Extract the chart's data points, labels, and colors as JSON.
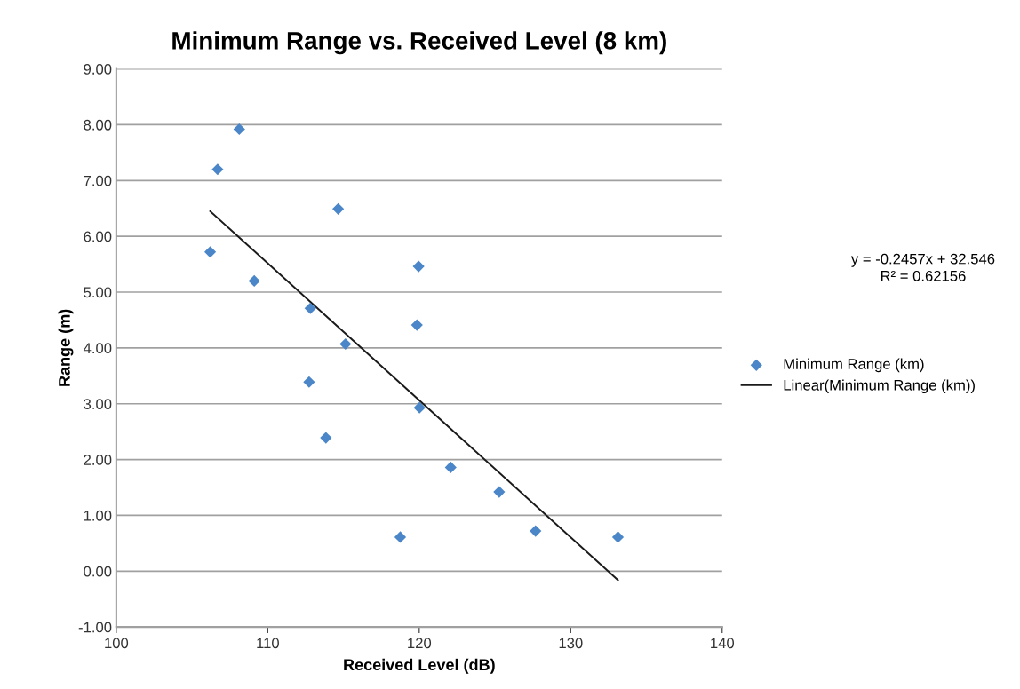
{
  "chart_data": {
    "type": "scatter",
    "title": "Minimum Range vs. Received Level (8 km)",
    "xlabel": "Received Level (dB)",
    "ylabel": "Range (m)",
    "series": [
      {
        "name": "Minimum Range (km)",
        "color": "#4a86c8",
        "marker": "diamond",
        "x": [
          108.12,
          106.69,
          114.65,
          106.2,
          119.96,
          109.11,
          112.81,
          119.85,
          115.13,
          112.73,
          120.02,
          113.84,
          122.08,
          125.28,
          118.75,
          127.68,
          133.12
        ],
        "values": [
          7.92,
          7.2,
          6.49,
          5.72,
          5.46,
          5.2,
          4.71,
          4.41,
          4.07,
          3.39,
          2.93,
          2.39,
          1.86,
          1.42,
          0.61,
          0.72,
          0.61
        ]
      },
      {
        "name": "Linear(Minimum Range (km))",
        "type": "line",
        "color": "#1a1a1a",
        "line_style": "solid",
        "x": [
          106.2,
          133.12
        ],
        "values": [
          6.45,
          -0.16
        ]
      }
    ],
    "annotations": [
      "y = -0.2457x + 32.546\nR² = 0.62156"
    ],
    "xlim": [
      100,
      140
    ],
    "xticks": [
      100,
      110,
      120,
      130,
      140
    ],
    "ylim": [
      -1,
      9
    ],
    "yticks": [
      {
        "value": -1,
        "label": "-1.00"
      },
      {
        "value": 0,
        "label": "0.00"
      },
      {
        "value": 1,
        "label": "1.00"
      },
      {
        "value": 2,
        "label": "2.00"
      },
      {
        "value": 3,
        "label": "3.00"
      },
      {
        "value": 4,
        "label": "4.00"
      },
      {
        "value": 5,
        "label": "5.00"
      },
      {
        "value": 6,
        "label": "6.00"
      },
      {
        "value": 7,
        "label": "7.00"
      },
      {
        "value": 8,
        "label": "8.00"
      },
      {
        "value": 9,
        "label": "9.00"
      }
    ],
    "grid": "y",
    "legend": "right"
  }
}
